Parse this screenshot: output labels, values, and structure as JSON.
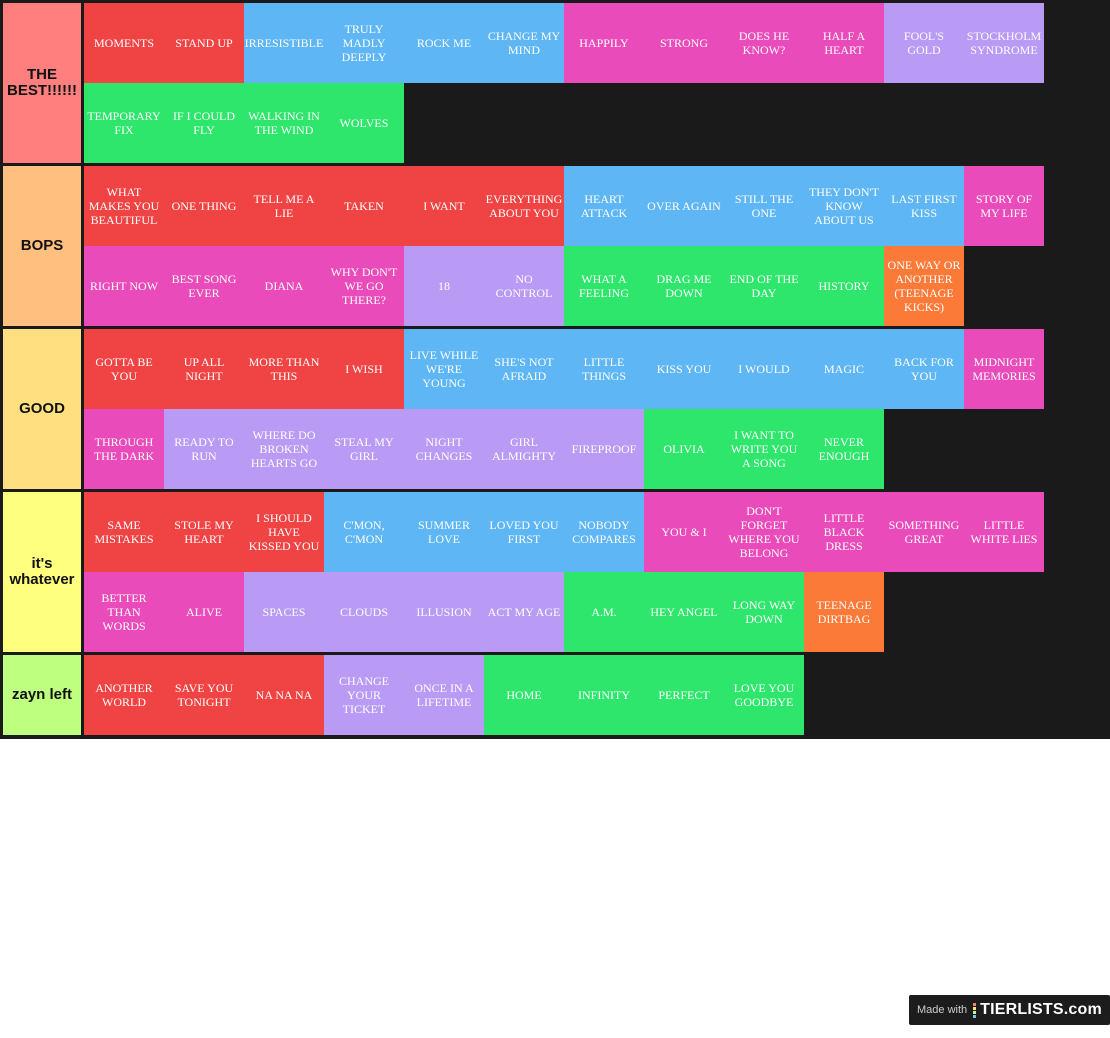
{
  "colors": {
    "red": "#f04444",
    "blue": "#5eb6f5",
    "pink": "#e94bba",
    "purple": "#b99af5",
    "green": "#2ee66b",
    "orange": "#fb7a38"
  },
  "tiers": [
    {
      "label": "THE BEST!!!!!!",
      "color": "#ff7f7f",
      "rows": [
        [
          {
            "text": "MOMENTS",
            "color": "red"
          },
          {
            "text": "STAND UP",
            "color": "red"
          },
          {
            "text": "IRRESISTIBLE",
            "color": "blue"
          },
          {
            "text": "TRULY MADLY DEEPLY",
            "color": "blue"
          },
          {
            "text": "ROCK ME",
            "color": "blue"
          },
          {
            "text": "CHANGE MY MIND",
            "color": "blue"
          },
          {
            "text": "HAPPILY",
            "color": "pink"
          },
          {
            "text": "STRONG",
            "color": "pink"
          },
          {
            "text": "DOES HE KNOW?",
            "color": "pink"
          },
          {
            "text": "HALF A HEART",
            "color": "pink"
          },
          {
            "text": "FOOL'S GOLD",
            "color": "purple"
          },
          {
            "text": "STOCKHOLM SYNDROME",
            "color": "purple"
          }
        ],
        [
          {
            "text": "TEMPORARY FIX",
            "color": "green"
          },
          {
            "text": "IF I COULD FLY",
            "color": "green"
          },
          {
            "text": "WALKING IN THE WIND",
            "color": "green"
          },
          {
            "text": "WOLVES",
            "color": "green"
          }
        ]
      ]
    },
    {
      "label": "BOPS",
      "color": "#ffbf7f",
      "rows": [
        [
          {
            "text": "WHAT MAKES YOU BEAUTIFUL",
            "color": "red"
          },
          {
            "text": "ONE THING",
            "color": "red"
          },
          {
            "text": "TELL ME A LIE",
            "color": "red"
          },
          {
            "text": "TAKEN",
            "color": "red"
          },
          {
            "text": "I WANT",
            "color": "red"
          },
          {
            "text": "EVERYTHING ABOUT YOU",
            "color": "red"
          },
          {
            "text": "HEART ATTACK",
            "color": "blue"
          },
          {
            "text": "OVER AGAIN",
            "color": "blue"
          },
          {
            "text": "STILL THE ONE",
            "color": "blue"
          },
          {
            "text": "THEY DON'T KNOW ABOUT US",
            "color": "blue"
          },
          {
            "text": "LAST FIRST KISS",
            "color": "blue"
          },
          {
            "text": "STORY OF MY LIFE",
            "color": "pink"
          }
        ],
        [
          {
            "text": "RIGHT NOW",
            "color": "pink"
          },
          {
            "text": "BEST SONG EVER",
            "color": "pink"
          },
          {
            "text": "DIANA",
            "color": "pink"
          },
          {
            "text": "WHY DON'T WE GO THERE?",
            "color": "pink"
          },
          {
            "text": "18",
            "color": "purple"
          },
          {
            "text": "NO CONTROL",
            "color": "purple"
          },
          {
            "text": "WHAT A FEELING",
            "color": "green"
          },
          {
            "text": "DRAG ME DOWN",
            "color": "green"
          },
          {
            "text": "END OF THE DAY",
            "color": "green"
          },
          {
            "text": "HISTORY",
            "color": "green"
          },
          {
            "text": "ONE WAY OR ANOTHER (TEENAGE KICKS)",
            "color": "orange"
          }
        ]
      ]
    },
    {
      "label": "GOOD",
      "color": "#ffdf7f",
      "rows": [
        [
          {
            "text": "GOTTA BE YOU",
            "color": "red"
          },
          {
            "text": "UP ALL NIGHT",
            "color": "red"
          },
          {
            "text": "MORE THAN THIS",
            "color": "red"
          },
          {
            "text": "I WISH",
            "color": "red"
          },
          {
            "text": "LIVE WHILE WE'RE YOUNG",
            "color": "blue"
          },
          {
            "text": "SHE'S NOT AFRAID",
            "color": "blue"
          },
          {
            "text": "LITTLE THINGS",
            "color": "blue"
          },
          {
            "text": "KISS YOU",
            "color": "blue"
          },
          {
            "text": "I WOULD",
            "color": "blue"
          },
          {
            "text": "MAGIC",
            "color": "blue"
          },
          {
            "text": "BACK FOR YOU",
            "color": "blue"
          },
          {
            "text": "MIDNIGHT MEMORIES",
            "color": "pink"
          }
        ],
        [
          {
            "text": "THROUGH THE DARK",
            "color": "pink"
          },
          {
            "text": "READY TO RUN",
            "color": "purple"
          },
          {
            "text": "WHERE DO BROKEN HEARTS GO",
            "color": "purple"
          },
          {
            "text": "STEAL MY GIRL",
            "color": "purple"
          },
          {
            "text": "NIGHT CHANGES",
            "color": "purple"
          },
          {
            "text": "GIRL ALMIGHTY",
            "color": "purple"
          },
          {
            "text": "FIREPROOF",
            "color": "purple"
          },
          {
            "text": "OLIVIA",
            "color": "green"
          },
          {
            "text": "I WANT TO WRITE YOU A SONG",
            "color": "green"
          },
          {
            "text": "NEVER ENOUGH",
            "color": "green"
          }
        ]
      ]
    },
    {
      "label": "it's whatever",
      "color": "#ffff7f",
      "rows": [
        [
          {
            "text": "SAME MISTAKES",
            "color": "red"
          },
          {
            "text": "STOLE MY HEART",
            "color": "red"
          },
          {
            "text": "I SHOULD HAVE KISSED YOU",
            "color": "red"
          },
          {
            "text": "C'MON, C'MON",
            "color": "blue"
          },
          {
            "text": "SUMMER LOVE",
            "color": "blue"
          },
          {
            "text": "LOVED YOU FIRST",
            "color": "blue"
          },
          {
            "text": "NOBODY COMPARES",
            "color": "blue"
          },
          {
            "text": "YOU & I",
            "color": "pink"
          },
          {
            "text": "DON'T FORGET WHERE YOU BELONG",
            "color": "pink"
          },
          {
            "text": "LITTLE BLACK DRESS",
            "color": "pink"
          },
          {
            "text": "SOMETHING GREAT",
            "color": "pink"
          },
          {
            "text": "LITTLE WHITE LIES",
            "color": "pink"
          }
        ],
        [
          {
            "text": "BETTER THAN WORDS",
            "color": "pink"
          },
          {
            "text": "ALIVE",
            "color": "pink"
          },
          {
            "text": "SPACES",
            "color": "purple"
          },
          {
            "text": "CLOUDS",
            "color": "purple"
          },
          {
            "text": "ILLUSION",
            "color": "purple"
          },
          {
            "text": "ACT MY AGE",
            "color": "purple"
          },
          {
            "text": "A.M.",
            "color": "green"
          },
          {
            "text": "HEY ANGEL",
            "color": "green"
          },
          {
            "text": "LONG WAY DOWN",
            "color": "green"
          },
          {
            "text": "TEENAGE DIRTBAG",
            "color": "orange"
          }
        ]
      ]
    },
    {
      "label": "zayn left",
      "color": "#bfff7f",
      "rows": [
        [
          {
            "text": "ANOTHER WORLD",
            "color": "red"
          },
          {
            "text": "SAVE YOU TONIGHT",
            "color": "red"
          },
          {
            "text": "NA NA NA",
            "color": "red"
          },
          {
            "text": "CHANGE YOUR TICKET",
            "color": "purple"
          },
          {
            "text": "ONCE IN A LIFETIME",
            "color": "purple"
          },
          {
            "text": "HOME",
            "color": "green"
          },
          {
            "text": "INFINITY",
            "color": "green"
          },
          {
            "text": "PERFECT",
            "color": "green"
          },
          {
            "text": "LOVE YOU GOODBYE",
            "color": "green"
          }
        ]
      ]
    }
  ],
  "footer": {
    "made_with": "Made with",
    "brand": "TIERLISTS.com"
  }
}
